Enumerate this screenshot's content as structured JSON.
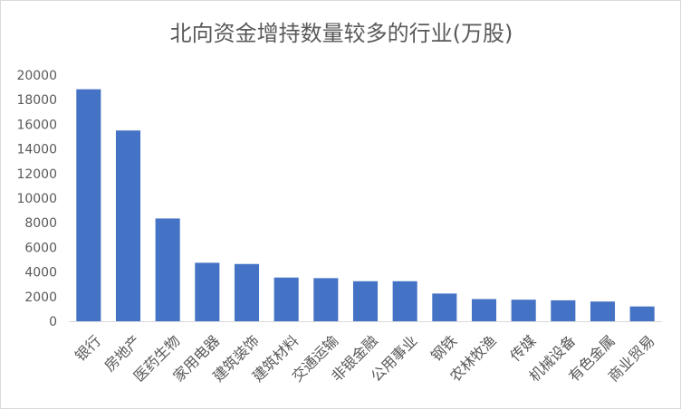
{
  "chart_data": {
    "type": "bar",
    "title": "北向资金增持数量较多的行业(万股)",
    "categories": [
      "银行",
      "房地产",
      "医药生物",
      "家用电器",
      "建筑装饰",
      "建筑材料",
      "交通运输",
      "非银金融",
      "公用事业",
      "钢铁",
      "农林牧渔",
      "传媒",
      "机械设备",
      "有色金属",
      "商业贸易"
    ],
    "values": [
      18850,
      15500,
      8350,
      4750,
      4650,
      3550,
      3500,
      3250,
      3250,
      2250,
      1800,
      1750,
      1700,
      1600,
      1200
    ],
    "yticks": [
      "0",
      "2000",
      "4000",
      "6000",
      "8000",
      "10000",
      "12000",
      "14000",
      "16000",
      "18000",
      "20000"
    ],
    "ylim": [
      0,
      20000
    ],
    "bar_color": "#4472c4",
    "axis_color": "#d9d9d9",
    "text_color": "#595959",
    "grid": false,
    "legend": "none"
  }
}
